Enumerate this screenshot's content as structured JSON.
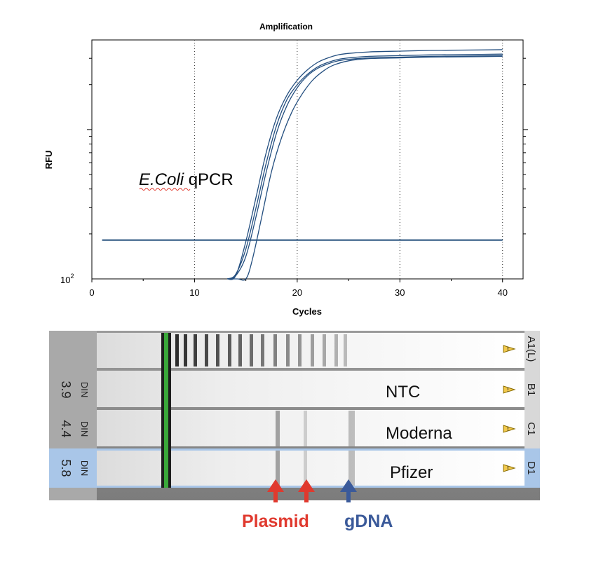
{
  "chart_data": {
    "type": "line",
    "title": "Amplification",
    "xlabel": "Cycles",
    "ylabel": "RFU",
    "xlim": [
      0,
      42
    ],
    "ylim_log10": [
      2.0,
      3.6
    ],
    "ytick_label": {
      "base": "10",
      "exp": "2"
    },
    "xticks": [
      0,
      10,
      20,
      30,
      40
    ],
    "annotation": {
      "italic": "E.Coli",
      "normal": " qPCR"
    },
    "threshold": {
      "x": [
        1,
        40
      ],
      "y_log10": 2.26
    },
    "series": [
      {
        "name": "curve-1",
        "x": [
          13.2,
          14,
          15,
          16,
          17,
          18,
          19,
          20,
          21,
          22,
          23,
          24,
          25,
          27,
          30,
          33,
          36,
          40
        ],
        "y_log10": [
          2.0,
          2.02,
          2.25,
          2.55,
          2.85,
          3.08,
          3.23,
          3.33,
          3.4,
          3.45,
          3.48,
          3.5,
          3.51,
          3.52,
          3.525,
          3.53,
          3.532,
          3.535
        ]
      },
      {
        "name": "curve-2",
        "x": [
          13.2,
          14,
          15,
          16,
          17,
          18,
          19,
          20,
          21,
          22,
          23,
          24,
          25,
          27,
          30,
          33,
          36,
          40
        ],
        "y_log10": [
          2.0,
          2.03,
          2.2,
          2.48,
          2.78,
          3.03,
          3.2,
          3.3,
          3.37,
          3.42,
          3.45,
          3.47,
          3.48,
          3.49,
          3.495,
          3.5,
          3.502,
          3.505
        ]
      },
      {
        "name": "curve-3",
        "x": [
          13.2,
          14,
          15,
          16,
          17,
          18,
          19,
          20,
          21,
          22,
          23,
          24,
          25,
          27,
          30,
          33,
          36,
          40
        ],
        "y_log10": [
          2.0,
          2.02,
          2.15,
          2.42,
          2.72,
          2.98,
          3.16,
          3.28,
          3.36,
          3.41,
          3.44,
          3.46,
          3.47,
          3.48,
          3.485,
          3.49,
          3.492,
          3.495
        ]
      },
      {
        "name": "curve-4",
        "x": [
          13.2,
          14.2,
          15,
          15.6,
          16.5,
          17.5,
          18.5,
          19.5,
          20.5,
          21.5,
          22.5,
          23.5,
          25,
          27,
          30,
          33,
          36,
          40
        ],
        "y_log10": [
          2.0,
          2.0,
          2.0,
          2.12,
          2.4,
          2.72,
          2.95,
          3.12,
          3.24,
          3.33,
          3.39,
          3.43,
          3.46,
          3.475,
          3.48,
          3.485,
          3.487,
          3.49
        ]
      }
    ]
  },
  "gel": {
    "lanes": [
      {
        "id": "A1(L)",
        "din_label": "",
        "din_value": "",
        "sample": ""
      },
      {
        "id": "B1",
        "din_label": "DIN",
        "din_value": "3.9",
        "sample": "NTC"
      },
      {
        "id": "C1",
        "din_label": "DIN",
        "din_value": "4.4",
        "sample": "Moderna"
      },
      {
        "id": "D1",
        "din_label": "DIN",
        "din_value": "5.8",
        "sample": "Pfizer"
      }
    ],
    "arrows": [
      {
        "label": "Plasmid",
        "color": "#e0392e"
      },
      {
        "label": "gDNA",
        "color": "#3b5a9a"
      }
    ],
    "warning_icon": "warning-triangle-icon"
  }
}
